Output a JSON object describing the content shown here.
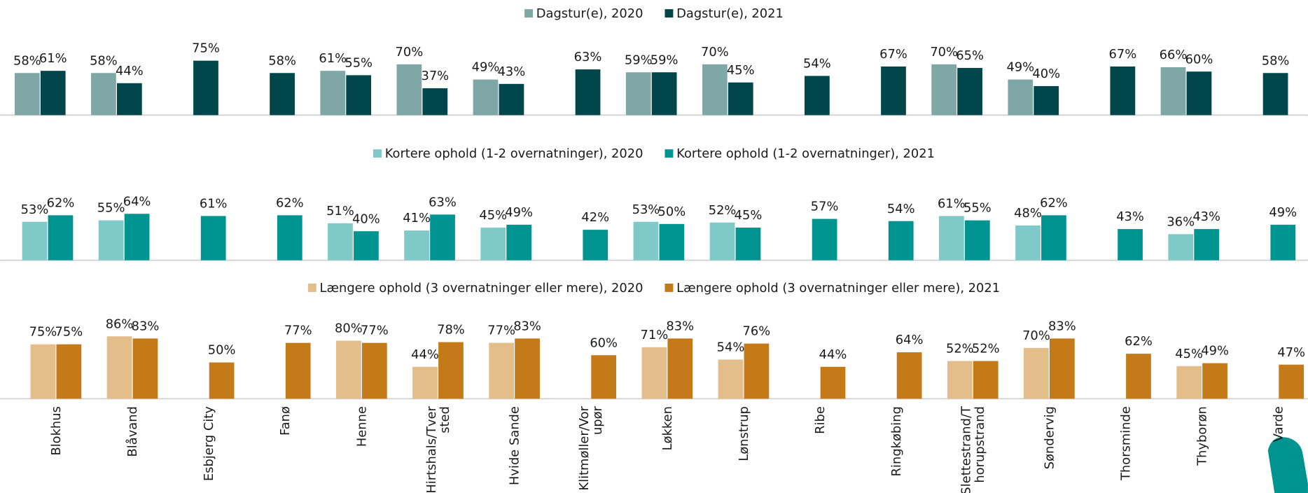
{
  "chart_data": [
    {
      "type": "bar",
      "ylim": [
        0,
        100
      ],
      "series": [
        {
          "name": "Dagstur(e), 2020",
          "color": "#7fa7a5",
          "values": [
            58,
            58,
            null,
            null,
            61,
            70,
            49,
            null,
            59,
            70,
            null,
            null,
            70,
            49,
            null,
            66,
            null
          ],
          "value_labels": [
            "58%",
            "58%",
            null,
            null,
            "61%",
            "70%",
            "49%",
            null,
            "59%",
            "70%",
            null,
            null,
            "70%",
            "49%",
            null,
            "66%",
            null
          ]
        },
        {
          "name": "Dagstur(e), 2021",
          "color": "#00464a",
          "values": [
            61,
            44,
            75,
            58,
            55,
            37,
            43,
            63,
            59,
            45,
            54,
            67,
            65,
            40,
            67,
            60,
            58
          ],
          "value_labels": [
            "61%",
            "44%",
            "75%",
            "58%",
            "55%",
            "37%",
            "43%",
            "63%",
            "59%",
            "45%",
            "54%",
            "67%",
            "65%",
            "40%",
            "67%",
            "60%",
            "58%"
          ]
        }
      ]
    },
    {
      "type": "bar",
      "ylim": [
        0,
        100
      ],
      "series": [
        {
          "name": "Kortere ophold (1-2 overnatninger), 2020",
          "color": "#7fcac8",
          "values": [
            53,
            55,
            null,
            null,
            51,
            41,
            45,
            null,
            53,
            52,
            null,
            null,
            61,
            48,
            null,
            36,
            null
          ],
          "value_labels": [
            "53%",
            "55%",
            null,
            null,
            "51%",
            "41%",
            "45%",
            null,
            "53%",
            "52%",
            null,
            null,
            "61%",
            "48%",
            null,
            "36%",
            null
          ]
        },
        {
          "name": "Kortere ophold (1-2 overnatninger), 2021",
          "color": "#009490",
          "values": [
            62,
            64,
            61,
            62,
            40,
            63,
            49,
            42,
            50,
            45,
            57,
            54,
            55,
            62,
            43,
            43,
            49
          ],
          "value_labels": [
            "62%",
            "64%",
            "61%",
            "62%",
            "40%",
            "63%",
            "49%",
            "42%",
            "50%",
            "45%",
            "57%",
            "54%",
            "55%",
            "62%",
            "43%",
            "43%",
            "49%"
          ]
        }
      ]
    },
    {
      "type": "bar",
      "ylim": [
        0,
        100
      ],
      "categories": [
        "Blokhus",
        "Blåvand",
        "Esbjerg City",
        "Fanø",
        "Henne",
        "Hirtshals/Tver\nsted",
        "Hvide Sande",
        "Klitmøller/Vor\nupør",
        "Løkken",
        "Lønstrup",
        "Ribe",
        "Ringkøbing",
        "Slettestrand/T\nhorupstrand",
        "Søndervig",
        "Thorsminde",
        "Thyborøn",
        "Varde"
      ],
      "series": [
        {
          "name": "Længere ophold (3 overnatninger eller mere), 2020",
          "color": "#e3bd8a",
          "values": [
            75,
            86,
            null,
            null,
            80,
            44,
            77,
            null,
            71,
            54,
            null,
            null,
            52,
            70,
            null,
            45,
            null
          ],
          "value_labels": [
            "75%",
            "86%",
            null,
            null,
            "80%",
            "44%",
            "77%",
            null,
            "71%",
            "54%",
            null,
            null,
            "52%",
            "70%",
            null,
            "45%",
            null
          ]
        },
        {
          "name": "Længere ophold (3 overnatninger eller mere), 2021",
          "color": "#c57a19",
          "values": [
            75,
            83,
            50,
            77,
            77,
            78,
            83,
            60,
            83,
            76,
            44,
            64,
            52,
            83,
            62,
            49,
            47
          ],
          "value_labels": [
            "75%",
            "83%",
            "50%",
            "77%",
            "77%",
            "78%",
            "83%",
            "60%",
            "83%",
            "76%",
            "44%",
            "64%",
            "52%",
            "83%",
            "62%",
            "49%",
            "47%"
          ]
        }
      ]
    }
  ]
}
